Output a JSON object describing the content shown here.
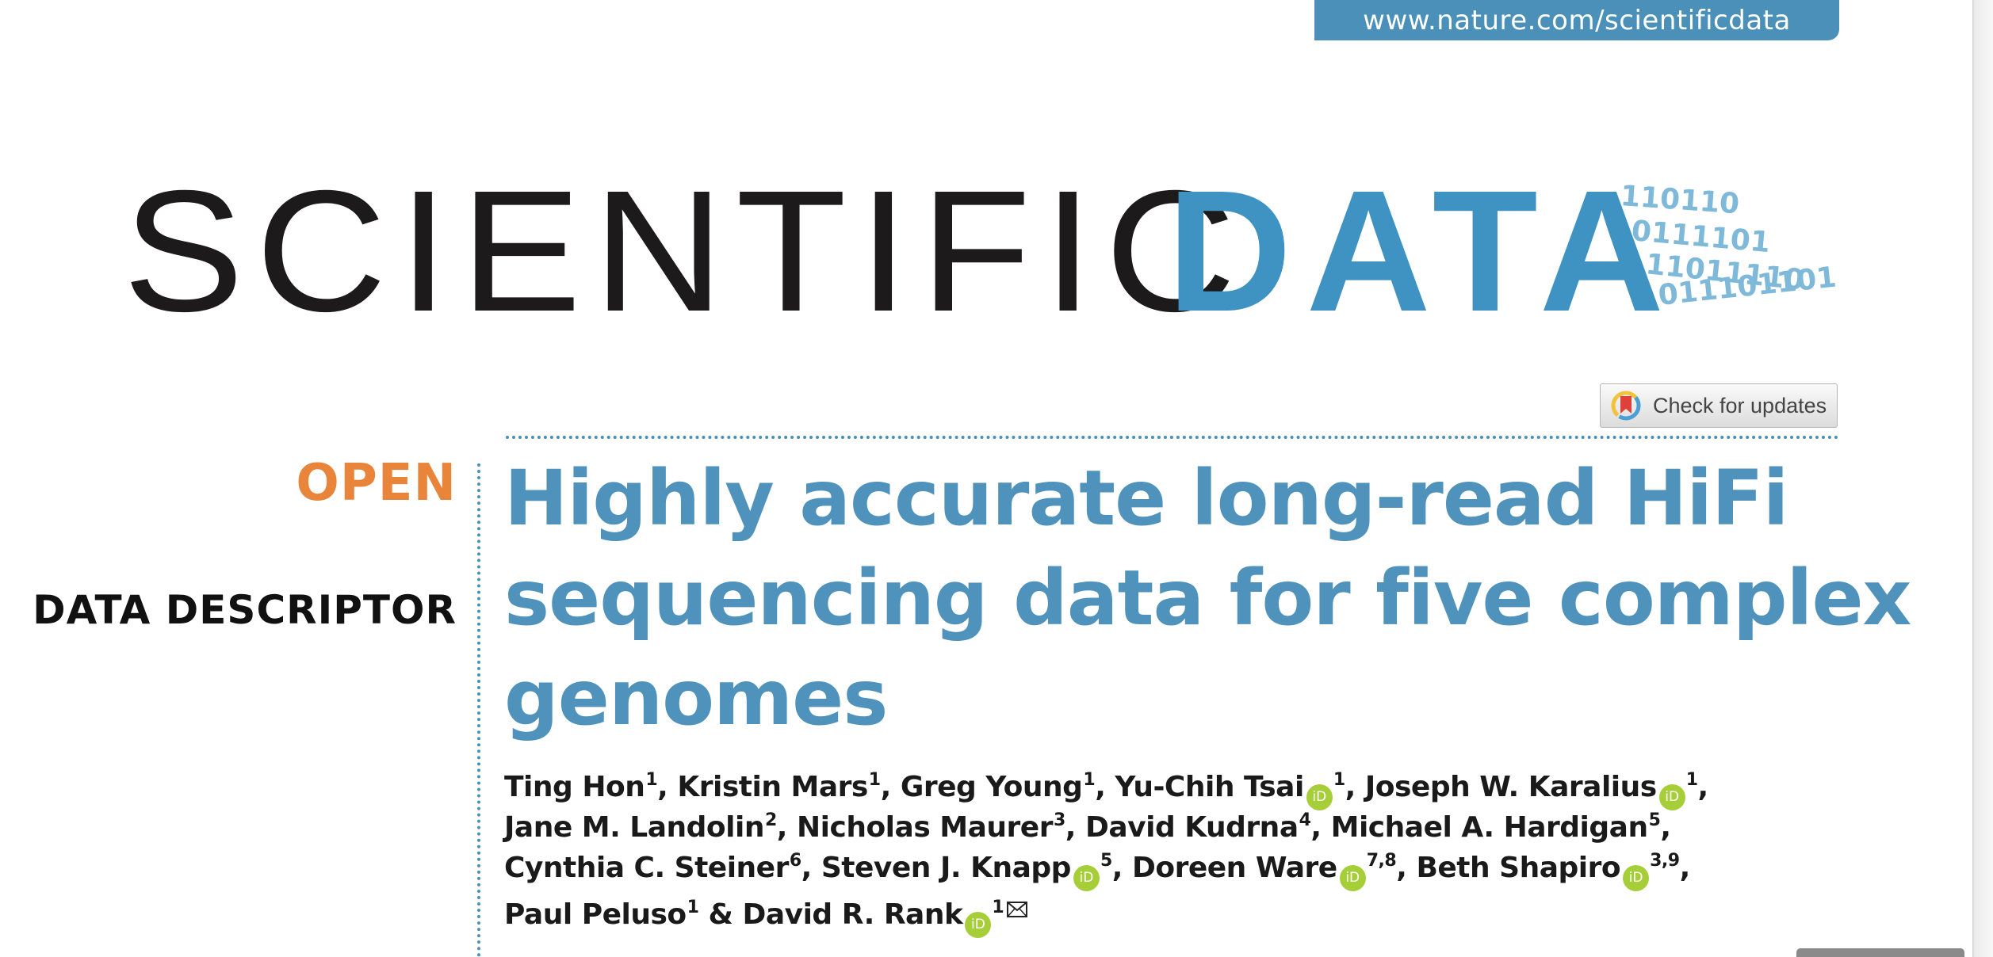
{
  "journal": {
    "url": "www.nature.com/scientificdata",
    "masthead_word1": "SCIENTIFIC",
    "masthead_word2": "DATA",
    "binary_lines": [
      "110110",
      "0111101",
      "11011110",
      "011101101"
    ],
    "colors": {
      "brand_blue": "#3f93c3",
      "title_blue": "#4f92bc",
      "open_orange": "#e8853a",
      "orcid_green": "#a6ce39"
    }
  },
  "updates_button": {
    "label": "Check for updates",
    "icon": "bookmark-ring-icon"
  },
  "article": {
    "access_label": "OPEN",
    "type_label": "DATA DESCRIPTOR",
    "title_lines": [
      "Highly accurate long-read HiFi",
      "sequencing data for five complex",
      "genomes"
    ]
  },
  "authors": {
    "orcid_label": "iD",
    "lines": [
      [
        {
          "name": "Ting Hon",
          "aff": "1",
          "orcid": false,
          "sep": ", "
        },
        {
          "name": "Kristin Mars",
          "aff": "1",
          "orcid": false,
          "sep": ", "
        },
        {
          "name": "Greg Young",
          "aff": "1",
          "orcid": false,
          "sep": ", "
        },
        {
          "name": "Yu-Chih Tsai",
          "aff": "1",
          "orcid": true,
          "sep": ", "
        },
        {
          "name": "Joseph W. Karalius",
          "aff": "1",
          "orcid": true,
          "sep": ","
        }
      ],
      [
        {
          "name": "Jane M. Landolin",
          "aff": "2",
          "orcid": false,
          "sep": ", "
        },
        {
          "name": "Nicholas Maurer",
          "aff": "3",
          "orcid": false,
          "sep": ", "
        },
        {
          "name": "David Kudrna",
          "aff": "4",
          "orcid": false,
          "sep": ", "
        },
        {
          "name": "Michael A. Hardigan",
          "aff": "5",
          "orcid": false,
          "sep": ","
        }
      ],
      [
        {
          "name": "Cynthia C. Steiner",
          "aff": "6",
          "orcid": false,
          "sep": ", "
        },
        {
          "name": "Steven J. Knapp",
          "aff": "5",
          "orcid": true,
          "sep": ", "
        },
        {
          "name": "Doreen Ware",
          "aff": "7,8",
          "orcid": true,
          "sep": ", "
        },
        {
          "name": "Beth Shapiro",
          "aff": "3,9",
          "orcid": true,
          "sep": ","
        }
      ],
      [
        {
          "name": "Paul Peluso",
          "aff": "1",
          "orcid": false,
          "sep": " & "
        },
        {
          "name": "David R. Rank",
          "aff": "1",
          "orcid": true,
          "sep": "",
          "corresponding": true
        }
      ]
    ]
  }
}
